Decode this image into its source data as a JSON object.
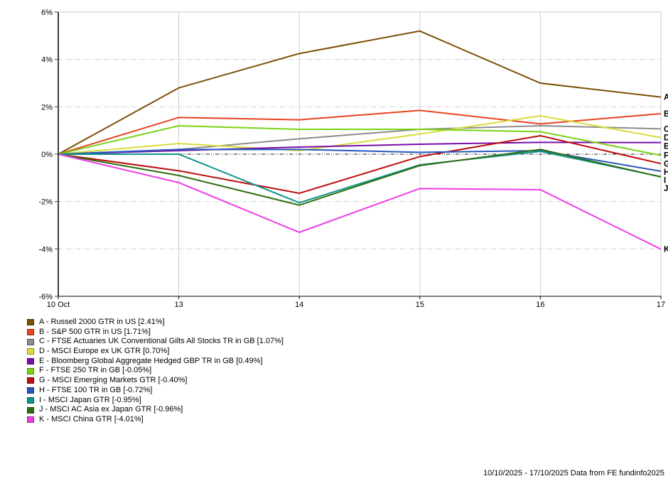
{
  "chart_data": {
    "type": "line",
    "title": "",
    "x_categories": [
      "10 Oct",
      "13",
      "14",
      "15",
      "16",
      "17"
    ],
    "ylim": [
      -6,
      6
    ],
    "ytick_values": [
      6,
      4,
      2,
      0,
      -2,
      -4,
      -6
    ],
    "ytick_labels": [
      "6%",
      "4%",
      "2%",
      "0%",
      "-2%",
      "-4%",
      "-6%"
    ],
    "grid": true,
    "legend_position": "bottom-left",
    "series": [
      {
        "letter": "A",
        "name": "Russell 2000 GTR in US",
        "return_pct": 2.41,
        "label": "A - Russell 2000 GTR in US [2.41%]",
        "color": "#7B5004",
        "values": [
          0,
          2.8,
          4.25,
          5.2,
          3.0,
          2.41
        ]
      },
      {
        "letter": "B",
        "name": "S&P 500 GTR in US",
        "return_pct": 1.71,
        "label": "B - S&P 500 GTR in US [1.71%]",
        "color": "#E8421E",
        "values": [
          0,
          1.55,
          1.45,
          1.85,
          1.28,
          1.71
        ]
      },
      {
        "letter": "C",
        "name": "FTSE Actuaries UK Conventional Gilts All Stocks TR in GB",
        "return_pct": 1.07,
        "label": "C - FTSE Actuaries UK Conventional Gilts All Stocks TR in GB [1.07%]",
        "color": "#8C8C8C",
        "values": [
          0,
          0.2,
          0.65,
          1.05,
          1.2,
          1.07
        ]
      },
      {
        "letter": "D",
        "name": "MSCI Europe ex UK GTR",
        "return_pct": 0.7,
        "label": "D - MSCI Europe ex UK GTR [0.70%]",
        "color": "#D9DC3C",
        "values": [
          0,
          0.45,
          0.15,
          0.85,
          1.62,
          0.7
        ]
      },
      {
        "letter": "E",
        "name": "Bloomberg Global Aggregate Hedged GBP TR in GB",
        "return_pct": 0.49,
        "label": "E - Bloomberg Global Aggregate Hedged GBP TR in GB [0.49%]",
        "color": "#7A0CA8",
        "values": [
          0,
          0.15,
          0.3,
          0.42,
          0.5,
          0.49
        ]
      },
      {
        "letter": "F",
        "name": "FTSE 250 TR in GB",
        "return_pct": -0.05,
        "label": "F - FTSE 250 TR in GB [-0.05%]",
        "color": "#79D413",
        "values": [
          0,
          1.2,
          1.05,
          1.05,
          0.95,
          -0.05
        ]
      },
      {
        "letter": "G",
        "name": "MSCI Emerging Markets GTR",
        "return_pct": -0.4,
        "label": "G - MSCI Emerging Markets GTR [-0.40%]",
        "color": "#BB0D0D",
        "values": [
          0,
          -0.7,
          -1.65,
          -0.1,
          0.78,
          -0.4
        ]
      },
      {
        "letter": "H",
        "name": "FTSE 100 TR in GB",
        "return_pct": -0.72,
        "label": "H - FTSE 100 TR in GB [-0.72%]",
        "color": "#2757BB",
        "values": [
          0,
          0.2,
          0.2,
          0.08,
          0.15,
          -0.72
        ]
      },
      {
        "letter": "I",
        "name": "MSCI Japan GTR",
        "return_pct": -0.95,
        "label": "I - MSCI Japan GTR [-0.95%]",
        "color": "#11948A",
        "values": [
          0,
          0,
          -2.05,
          -0.45,
          0.12,
          -0.95
        ]
      },
      {
        "letter": "J",
        "name": "MSCI AC Asia ex Japan GTR",
        "return_pct": -0.96,
        "label": "J - MSCI AC Asia ex Japan GTR [-0.96%]",
        "color": "#2E6E12",
        "values": [
          0,
          -0.9,
          -2.15,
          -0.48,
          0.2,
          -0.96
        ]
      },
      {
        "letter": "K",
        "name": "MSCI China GTR",
        "return_pct": -4.01,
        "label": "K - MSCI China GTR [-4.01%]",
        "color": "#EE3CE6",
        "values": [
          0,
          -1.2,
          -3.3,
          -1.45,
          -1.5,
          -4.01
        ]
      }
    ]
  },
  "footer": {
    "text": "10/10/2025 - 17/10/2025 Data from FE fundinfo2025"
  }
}
